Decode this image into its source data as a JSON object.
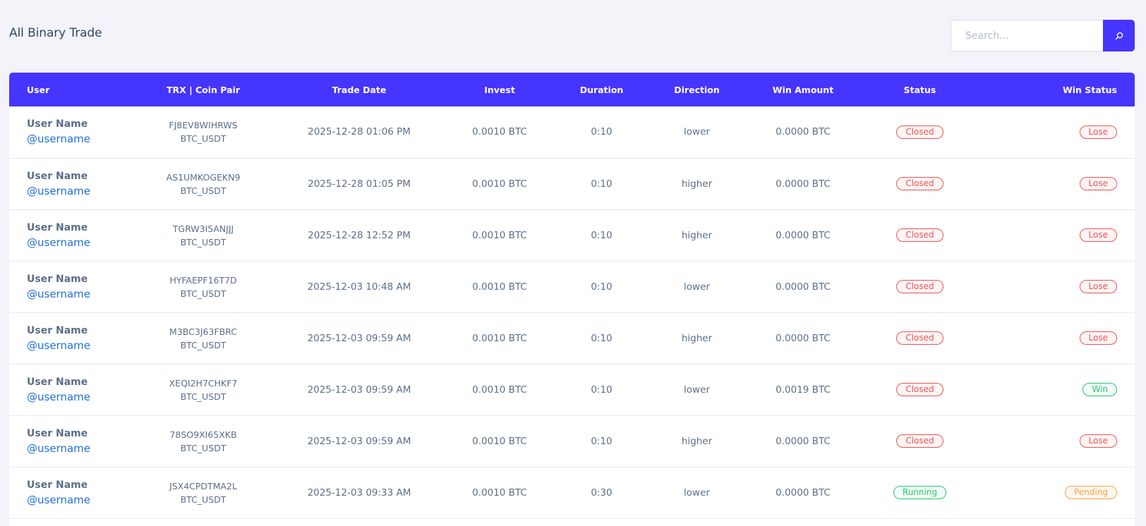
{
  "page": {
    "title": "All Binary Trade"
  },
  "search": {
    "placeholder": "Search...",
    "value": "",
    "icon": "search-icon"
  },
  "colors": {
    "accent": "#4634ff",
    "closed": "#ea5455",
    "running": "#28c76f",
    "win": "#28c76f",
    "lose": "#ea5455",
    "pending": "#ff9f43",
    "link": "#1e6fd9"
  },
  "table": {
    "headers": {
      "user": "User",
      "trx": "TRX | Coin Pair",
      "date": "Trade Date",
      "invest": "Invest",
      "duration": "Duration",
      "direction": "Direction",
      "win_amount": "Win Amount",
      "status": "Status",
      "win_status": "Win Status"
    },
    "rows": [
      {
        "name": "User Name",
        "username": "@username",
        "trx": "FJ8EV8WIHRWS",
        "pair": "BTC_USDT",
        "date": "2025-12-28 01:06 PM",
        "invest": "0.0010 BTC",
        "duration": "0:10",
        "direction": "lower",
        "win_amount": "0.0000 BTC",
        "status": "Closed",
        "win_status": "Lose"
      },
      {
        "name": "User Name",
        "username": "@username",
        "trx": "AS1UMKOGEKN9",
        "pair": "BTC_USDT",
        "date": "2025-12-28 01:05 PM",
        "invest": "0.0010 BTC",
        "duration": "0:10",
        "direction": "higher",
        "win_amount": "0.0000 BTC",
        "status": "Closed",
        "win_status": "Lose"
      },
      {
        "name": "User Name",
        "username": "@username",
        "trx": "TGRW3I5ANJJJ",
        "pair": "BTC_USDT",
        "date": "2025-12-28 12:52 PM",
        "invest": "0.0010 BTC",
        "duration": "0:10",
        "direction": "higher",
        "win_amount": "0.0000 BTC",
        "status": "Closed",
        "win_status": "Lose"
      },
      {
        "name": "User Name",
        "username": "@username",
        "trx": "HYFAEPF16T7D",
        "pair": "BTC_USDT",
        "date": "2025-12-03 10:48 AM",
        "invest": "0.0010 BTC",
        "duration": "0:10",
        "direction": "lower",
        "win_amount": "0.0000 BTC",
        "status": "Closed",
        "win_status": "Lose"
      },
      {
        "name": "User Name",
        "username": "@username",
        "trx": "M3BC3J63FBRC",
        "pair": "BTC_USDT",
        "date": "2025-12-03 09:59 AM",
        "invest": "0.0010 BTC",
        "duration": "0:10",
        "direction": "higher",
        "win_amount": "0.0000 BTC",
        "status": "Closed",
        "win_status": "Lose"
      },
      {
        "name": "User Name",
        "username": "@username",
        "trx": "XEQI2H7CHKF7",
        "pair": "BTC_USDT",
        "date": "2025-12-03 09:59 AM",
        "invest": "0.0010 BTC",
        "duration": "0:10",
        "direction": "lower",
        "win_amount": "0.0019 BTC",
        "status": "Closed",
        "win_status": "Win"
      },
      {
        "name": "User Name",
        "username": "@username",
        "trx": "78SO9XI65XKB",
        "pair": "BTC_USDT",
        "date": "2025-12-03 09:59 AM",
        "invest": "0.0010 BTC",
        "duration": "0:10",
        "direction": "higher",
        "win_amount": "0.0000 BTC",
        "status": "Closed",
        "win_status": "Lose"
      },
      {
        "name": "User Name",
        "username": "@username",
        "trx": "JSX4CPDTMA2L",
        "pair": "BTC_USDT",
        "date": "2025-12-03 09:33 AM",
        "invest": "0.0010 BTC",
        "duration": "0:30",
        "direction": "lower",
        "win_amount": "0.0000 BTC",
        "status": "Running",
        "win_status": "Pending"
      }
    ]
  }
}
